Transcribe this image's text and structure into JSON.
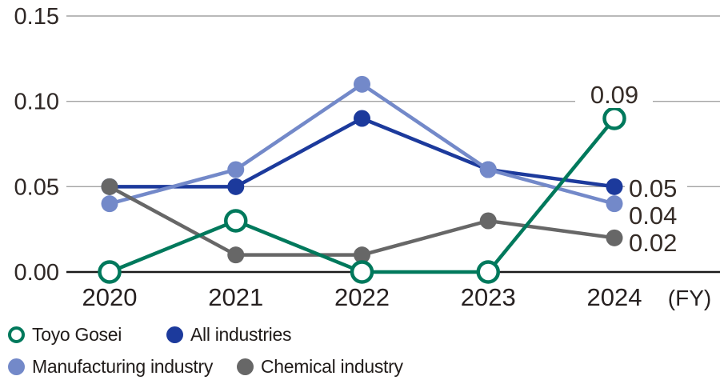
{
  "chart_data": {
    "type": "line",
    "title": "",
    "x_unit_label": "(FY)",
    "categories": [
      "2020",
      "2021",
      "2022",
      "2023",
      "2024"
    ],
    "y_ticks": [
      {
        "value": 0.0,
        "label": "0.00"
      },
      {
        "value": 0.05,
        "label": "0.05"
      },
      {
        "value": 0.1,
        "label": "0.10"
      },
      {
        "value": 0.15,
        "label": "0.15"
      }
    ],
    "ylim": [
      0,
      0.15
    ],
    "grid": true,
    "series": [
      {
        "name": "All industries",
        "color": "#1c3a9c",
        "marker": "filled",
        "values": [
          0.05,
          0.05,
          0.09,
          0.06,
          0.05
        ]
      },
      {
        "name": "Manufacturing industry",
        "color": "#7389c9",
        "marker": "filled",
        "values": [
          0.04,
          0.06,
          0.11,
          0.06,
          0.04
        ]
      },
      {
        "name": "Chemical industry",
        "color": "#676767",
        "marker": "filled",
        "values": [
          0.05,
          0.01,
          0.01,
          0.03,
          0.02
        ]
      },
      {
        "name": "Toyo Gosei",
        "color": "#00795c",
        "marker": "open",
        "values": [
          0.0,
          0.03,
          0.0,
          0.0,
          0.09
        ]
      }
    ],
    "end_labels": [
      {
        "series": "Toyo Gosei",
        "text": "0.09"
      },
      {
        "series": "All industries",
        "text": "0.05"
      },
      {
        "series": "Manufacturing industry",
        "text": "0.04"
      },
      {
        "series": "Chemical industry",
        "text": "0.02"
      }
    ],
    "legend_position": "bottom-left",
    "legend": [
      {
        "label": "Toyo Gosei",
        "marker": "open",
        "color": "#00795c"
      },
      {
        "label": "All industries",
        "marker": "filled",
        "color": "#1c3a9c"
      },
      {
        "label": "Manufacturing industry",
        "marker": "filled",
        "color": "#7389c9"
      },
      {
        "label": "Chemical industry",
        "marker": "filled",
        "color": "#676767"
      }
    ],
    "colors": {
      "gridline": "#a2a2a2",
      "axis_line": "#1a1a1a",
      "tick_text": "#2e2725",
      "value_label_text": "#352c27"
    }
  }
}
